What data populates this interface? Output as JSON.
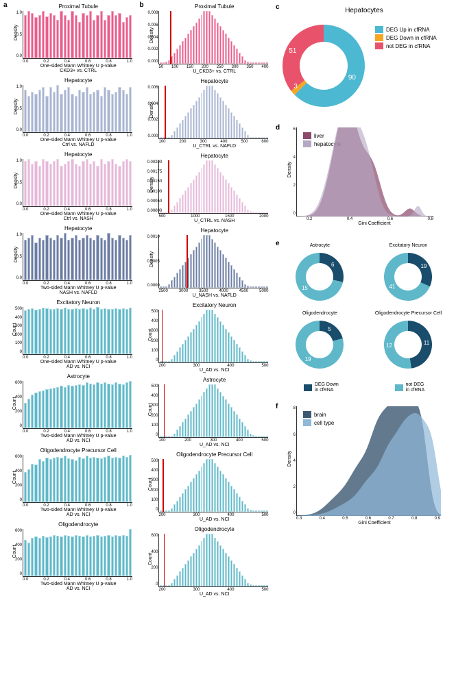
{
  "colA": {
    "label": "a",
    "charts": [
      {
        "title": "Proximal Tubule",
        "xlabel": "One-sided Mann Whitney U p-value\nCKD3+ vs. CTRL",
        "ylabel": "Density",
        "color": "#e85d8c",
        "ymax": 1.2,
        "yticks": [
          "0.0",
          "0.5",
          "1.0"
        ],
        "xticks": [
          "0.0",
          "0.2",
          "0.4",
          "0.6",
          "0.8",
          "1.0"
        ],
        "bars": [
          1.0,
          1.1,
          1.05,
          0.95,
          1.0,
          1.1,
          0.98,
          1.05,
          1.0,
          0.9,
          1.1,
          1.0,
          0.9,
          1.1,
          1.0,
          0.85,
          1.05,
          1.0,
          1.1,
          0.9,
          1.0,
          1.1,
          0.9,
          1.0,
          1.1,
          1.0,
          1.05,
          0.85,
          0.95,
          1.0
        ]
      },
      {
        "title": "Hepatocyte",
        "xlabel": "One-sided Mann Whitney U p-value\nCtrl vs. NAFLD",
        "ylabel": "Density",
        "color": "#a8b5d1",
        "ymax": 1.0,
        "yticks": [
          "0.0",
          "0.5",
          "1.0"
        ],
        "xticks": [
          "0.0",
          "0.2",
          "0.4",
          "0.6",
          "0.8",
          "1.0"
        ],
        "bars": [
          0.95,
          0.8,
          0.9,
          0.85,
          0.95,
          1.0,
          0.8,
          1.0,
          0.9,
          1.05,
          0.85,
          0.95,
          1.0,
          0.85,
          0.8,
          0.95,
          0.9,
          1.0,
          0.85,
          0.9,
          0.95,
          0.8,
          1.0,
          0.95,
          0.85,
          0.9,
          1.0,
          0.95,
          0.85,
          1.0
        ]
      },
      {
        "title": "Hepatocyte",
        "xlabel": "One-sided Mann Whitney U p-value\nCtrl vs. NASH",
        "ylabel": "Density",
        "color": "#e5b8d9",
        "ymax": 1.0,
        "yticks": [
          "0.0",
          "0.5",
          "1.0"
        ],
        "xticks": [
          "0.0",
          "0.2",
          "0.4",
          "0.6",
          "0.8",
          "1.0"
        ],
        "bars": [
          0.95,
          1.0,
          0.9,
          0.95,
          0.85,
          1.0,
          0.95,
          0.9,
          0.95,
          1.0,
          0.85,
          0.9,
          0.95,
          1.0,
          0.9,
          0.85,
          0.95,
          1.0,
          0.9,
          0.95,
          0.85,
          1.0,
          0.9,
          0.95,
          1.0,
          0.9,
          0.85,
          0.95,
          1.0,
          0.95
        ]
      },
      {
        "title": "Hepatocyte",
        "xlabel": "Two-sided Mann Whitney U p-value\nNASH vs. NAFLD",
        "ylabel": "Density",
        "color": "#6b7ca3",
        "ymax": 1.0,
        "yticks": [
          "0.0",
          "0.5",
          "1.0"
        ],
        "xticks": [
          "0.0",
          "0.2",
          "0.4",
          "0.6",
          "0.8",
          "1.0"
        ],
        "bars": [
          0.85,
          0.9,
          0.95,
          0.8,
          0.9,
          0.85,
          0.95,
          0.9,
          0.85,
          0.95,
          0.9,
          1.0,
          0.85,
          0.9,
          0.95,
          0.85,
          0.9,
          0.95,
          0.9,
          0.85,
          0.95,
          0.9,
          0.85,
          1.0,
          0.9,
          0.85,
          0.95,
          0.9,
          0.85,
          0.95
        ]
      },
      {
        "title": "Excitatory Neuron",
        "xlabel": "One-sided Mann Whitney U p-value\nAD vs. NCI",
        "ylabel": "Count",
        "color": "#5fb8c9",
        "ymax": 500,
        "yticks": [
          "0",
          "100",
          "200",
          "300",
          "400",
          "500"
        ],
        "xticks": [
          "0.0",
          "0.2",
          "0.4",
          "0.6",
          "0.8",
          "1.0"
        ],
        "bars": [
          380,
          390,
          400,
          385,
          395,
          405,
          400,
          395,
          390,
          400,
          395,
          405,
          390,
          395,
          400,
          390,
          400,
          395,
          405,
          395,
          410,
          395,
          400,
          390,
          395,
          400,
          395,
          400,
          395,
          405
        ]
      },
      {
        "title": "Astrocyte",
        "xlabel": "Two-sided Mann Whitney U p-value\nAD vs. NCI",
        "ylabel": "Count",
        "color": "#5fb8c9",
        "ymax": 600,
        "yticks": [
          "0",
          "200",
          "400",
          "600"
        ],
        "xticks": [
          "0.0",
          "0.2",
          "0.4",
          "0.6",
          "0.8",
          "1.0"
        ],
        "bars": [
          300,
          350,
          400,
          420,
          440,
          450,
          460,
          470,
          480,
          490,
          500,
          490,
          510,
          500,
          510,
          520,
          510,
          540,
          530,
          520,
          540,
          530,
          540,
          530,
          520,
          540,
          530,
          520,
          540,
          560
        ]
      },
      {
        "title": "Oligodendrocyte Precursor Cell",
        "xlabel": "Two-sided Mann Whitney U p-value\nAD vs. NCI",
        "ylabel": "Count",
        "color": "#5fb8c9",
        "ymax": 600,
        "yticks": [
          "0",
          "200",
          "400",
          "600"
        ],
        "xticks": [
          "0.0",
          "0.2",
          "0.4",
          "0.6",
          "0.8",
          "1.0"
        ],
        "bars": [
          350,
          380,
          450,
          440,
          500,
          480,
          520,
          500,
          520,
          530,
          520,
          540,
          510,
          500,
          490,
          530,
          510,
          540,
          520,
          530,
          520,
          510,
          530,
          540,
          520,
          530,
          520,
          540,
          530,
          550
        ]
      },
      {
        "title": "Oligodendrocyte",
        "xlabel": "Two-sided Mann Whitney U p-value\nAD vs. NCI",
        "ylabel": "Count",
        "color": "#5fb8c9",
        "ymax": 600,
        "yticks": [
          "0",
          "200",
          "400",
          "600"
        ],
        "xticks": [
          "0.0",
          "0.2",
          "0.4",
          "0.6",
          "0.8",
          "1.0"
        ],
        "bars": [
          480,
          440,
          500,
          520,
          500,
          530,
          510,
          520,
          540,
          530,
          520,
          540,
          530,
          520,
          540,
          530,
          520,
          540,
          520,
          530,
          540,
          520,
          530,
          540,
          520,
          540,
          530,
          540,
          530,
          620
        ]
      }
    ]
  },
  "colB": {
    "label": "b",
    "charts": [
      {
        "title": "Proximal Tubule",
        "xlabel": "U_CKD3+ vs. CTRL",
        "ylabel": "Density",
        "color": "#e85d8c",
        "ymax": 0.008,
        "yticks": [
          "0.000",
          "0.002",
          "0.004",
          "0.006",
          "0.008"
        ],
        "xticks": [
          "50",
          "100",
          "150",
          "200",
          "250",
          "300",
          "350",
          "400"
        ],
        "vline_pos": 0.1,
        "bars": [
          0,
          0,
          0.5,
          1,
          2,
          3,
          4,
          5,
          6,
          7,
          8,
          9,
          10,
          11,
          12,
          13,
          14,
          14,
          14,
          13,
          12,
          11,
          10,
          9,
          8,
          7,
          6,
          5,
          4,
          3,
          2,
          1,
          0.5,
          0,
          0,
          0,
          0,
          0,
          0,
          0
        ]
      },
      {
        "title": "Hepatocyte",
        "xlabel": "U_CTRL vs. NAFLD",
        "ylabel": "Density",
        "color": "#a8b5d1",
        "ymax": 0.006,
        "yticks": [
          "0.000",
          "0.002",
          "0.004",
          "0.006"
        ],
        "xticks": [
          "100",
          "200",
          "300",
          "400",
          "500",
          "600"
        ],
        "vline_pos": 0.05,
        "bars": [
          0,
          0,
          0,
          0,
          1,
          2,
          3,
          4,
          5,
          6,
          7,
          8,
          9,
          10,
          11,
          12,
          13,
          14,
          14,
          14,
          13,
          12,
          11,
          10,
          9,
          8,
          7,
          6,
          5,
          4,
          3,
          2,
          1,
          0,
          0,
          0,
          0,
          0,
          0,
          0
        ]
      },
      {
        "title": "Hepatocyte",
        "xlabel": "U_CTRL vs. NASH",
        "ylabel": "Density",
        "color": "#e5b8d9",
        "ymax": 0.002,
        "yticks": [
          "0.00000",
          "0.00050",
          "0.00100",
          "0.00150",
          "0.00175",
          "0.00200"
        ],
        "xticks": [
          "500",
          "1000",
          "1500",
          "2000"
        ],
        "vline_pos": 0.08,
        "bars": [
          0,
          0,
          0,
          0,
          1,
          2,
          3,
          4,
          5,
          6,
          7,
          8,
          9,
          10,
          11,
          12,
          13,
          14,
          14,
          14,
          13,
          12,
          11,
          10,
          9,
          8,
          7,
          6,
          5,
          4,
          3,
          2,
          1,
          0.5,
          0,
          0,
          0,
          0,
          0,
          0
        ]
      },
      {
        "title": "Hepatocyte",
        "xlabel": "U_NASH vs. NAFLD",
        "ylabel": "Density",
        "color": "#6b7ca3",
        "ymax": 0.001,
        "yticks": [
          "0.0000",
          "0.0005",
          "0.0010"
        ],
        "xticks": [
          "2500",
          "3000",
          "3500",
          "4000",
          "4500",
          "5000"
        ],
        "vline_pos": 0.25,
        "bars": [
          0,
          0,
          0,
          1,
          2,
          3,
          4,
          5,
          6,
          7,
          8,
          9,
          10,
          11,
          12,
          13,
          14,
          14,
          14,
          13,
          12,
          11,
          10,
          9,
          8,
          7,
          6,
          5,
          4,
          3,
          2,
          1,
          0.5,
          0,
          0,
          0,
          0,
          0,
          0,
          0
        ]
      },
      {
        "title": "Excitatory Neuron",
        "xlabel": "U_AD vs. NCI",
        "ylabel": "Count",
        "color": "#5fb8c9",
        "ymax": 500,
        "yticks": [
          "0",
          "100",
          "200",
          "300",
          "400",
          "500"
        ],
        "xticks": [
          "200",
          "300",
          "400",
          "500"
        ],
        "vline_pos": 0.02,
        "bars": [
          0,
          0,
          0,
          0,
          1,
          2,
          3,
          4,
          5,
          6,
          7,
          8,
          9,
          10,
          11,
          12,
          13,
          14,
          14,
          14,
          13,
          12,
          11,
          10,
          9,
          8,
          7,
          6,
          5,
          4,
          3,
          2,
          1,
          0.5,
          0,
          0,
          0,
          0,
          0,
          0
        ]
      },
      {
        "title": "Astrocyte",
        "xlabel": "U_AD vs. NCI",
        "ylabel": "Count",
        "color": "#5fb8c9",
        "ymax": 500,
        "yticks": [
          "0",
          "100",
          "200",
          "300",
          "400",
          "500"
        ],
        "xticks": [
          "100",
          "200",
          "300",
          "400",
          "500"
        ],
        "vline_pos": 0.04,
        "bars": [
          0,
          0,
          0,
          0,
          0,
          1,
          2,
          3,
          4,
          5,
          6,
          7,
          8,
          9,
          10,
          11,
          12,
          13,
          14,
          14,
          14,
          13,
          12,
          11,
          10,
          9,
          8,
          7,
          6,
          5,
          4,
          3,
          2,
          1,
          0.5,
          0,
          0,
          0,
          0,
          0
        ]
      },
      {
        "title": "Oligodendrocyte Precursor Cell",
        "xlabel": "U_AD vs. NCI",
        "ylabel": "Count",
        "color": "#5fb8c9",
        "ymax": 500,
        "yticks": [
          "0",
          "100",
          "200",
          "300",
          "400",
          "500"
        ],
        "xticks": [
          "200",
          "300",
          "400",
          "500"
        ],
        "vline_pos": 0.03,
        "bars": [
          0,
          0,
          0,
          0,
          1,
          2,
          3,
          4,
          5,
          6,
          7,
          8,
          9,
          10,
          11,
          12,
          13,
          14,
          14,
          14,
          13,
          12,
          11,
          10,
          9,
          8,
          7,
          6,
          5,
          4,
          3,
          2,
          1,
          0.5,
          0,
          0,
          0,
          0,
          0,
          0
        ]
      },
      {
        "title": "Oligodendrocyte",
        "xlabel": "U_AD vs. NCI",
        "ylabel": "Count",
        "color": "#5fb8c9",
        "ymax": 600,
        "yticks": [
          "0",
          "200",
          "400",
          "600"
        ],
        "xticks": [
          "200",
          "300",
          "400",
          "500"
        ],
        "vline_pos": 0.04,
        "bars": [
          0,
          0,
          0,
          0,
          1,
          2,
          3,
          4,
          5,
          6,
          7,
          8,
          9,
          10,
          11,
          12,
          13,
          14,
          14,
          14,
          13,
          12,
          11,
          10,
          9,
          8,
          7,
          6,
          5,
          4,
          3,
          2,
          1,
          0.5,
          0,
          0,
          0,
          0,
          0,
          0
        ]
      }
    ]
  },
  "panelC": {
    "label": "c",
    "title": "Hepatocytes",
    "segments": [
      {
        "label": "DEG Up in cfRNA",
        "value": 90,
        "color": "#4db8d1"
      },
      {
        "label": "DEG Down in cfRNA",
        "value": 3,
        "color": "#f5a623"
      },
      {
        "label": "not DEG in cfRNA",
        "value": 51,
        "color": "#e8536b"
      }
    ]
  },
  "panelD": {
    "label": "d",
    "legend": [
      {
        "label": "liver",
        "color": "#8b4a6b"
      },
      {
        "label": "hepatocyte",
        "color": "#b5a8c4"
      }
    ],
    "xlabel": "Gini Coefficient",
    "ylabel": "Density",
    "xticks": [
      "0.2",
      "0.4",
      "0.6",
      "0.8"
    ],
    "yticks": [
      "0",
      "2",
      "4",
      "6"
    ],
    "ymax": 7,
    "xmin": 0.1,
    "xmax": 0.95
  },
  "panelE": {
    "label": "e",
    "donuts": [
      {
        "title": "Astrocyte",
        "seg1": {
          "value": 6,
          "color": "#1a4d6b"
        },
        "seg2": {
          "value": 15,
          "color": "#5fb8c9"
        }
      },
      {
        "title": "Excitatory Neuron",
        "seg1": {
          "value": 19,
          "color": "#1a4d6b"
        },
        "seg2": {
          "value": 41,
          "color": "#5fb8c9"
        }
      },
      {
        "title": "Oligodendrocyte",
        "seg1": {
          "value": 5,
          "color": "#1a4d6b"
        },
        "seg2": {
          "value": 19,
          "color": "#5fb8c9"
        }
      },
      {
        "title": "Oligodendrocyte Precursor Cell",
        "seg1": {
          "value": 11,
          "color": "#1a4d6b"
        },
        "seg2": {
          "value": 12,
          "color": "#5fb8c9"
        }
      }
    ],
    "legend": [
      {
        "label": "DEG Down\nin cfRNA",
        "color": "#1a4d6b"
      },
      {
        "label": "not DEG\nin cfRNA",
        "color": "#5fb8c9"
      }
    ]
  },
  "panelF": {
    "label": "f",
    "legend": [
      {
        "label": "brain",
        "color": "#3d5a73"
      },
      {
        "label": "cell type",
        "color": "#8fb8d9"
      }
    ],
    "xlabel": "Gini Coefficient",
    "ylabel": "Density",
    "xticks": [
      "0.3",
      "0.4",
      "0.5",
      "0.6",
      "0.7",
      "0.8",
      "0.9"
    ],
    "yticks": [
      "0",
      "2",
      "4",
      "6",
      "8"
    ],
    "ymax": 9,
    "xmin": 0.25,
    "xmax": 0.92
  }
}
